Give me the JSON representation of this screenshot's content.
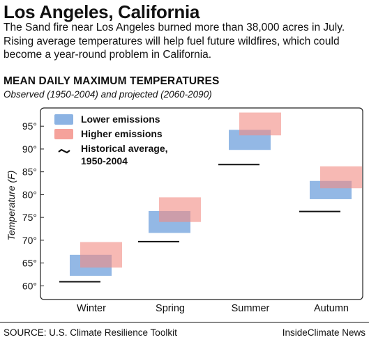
{
  "headline": "Los Angeles, California",
  "dek": "The Sand fire near Los Angeles burned more than 38,000 acres in July. Rising average temperatures will help fuel future wildfires, which could become a year-round problem in California.",
  "source": "SOURCE: U.S. Climate Resilience Toolkit",
  "credit": "InsideClimate News",
  "colors": {
    "lower": "#6fa0dc",
    "higher": "#f28b82",
    "historical": "#111111"
  },
  "chart_data": {
    "type": "range-bar",
    "title": "MEAN DAILY MAXIMUM TEMPERATURES",
    "subtitle": "Observed (1950-2004) and projected (2060-2090)",
    "ylabel": "Temperature (F)",
    "ylim": [
      57,
      99
    ],
    "yticks": [
      60,
      65,
      70,
      75,
      80,
      85,
      90,
      95
    ],
    "ytick_labels": [
      "60°",
      "65°",
      "70°",
      "75°",
      "80°",
      "85°",
      "90°",
      "95°"
    ],
    "categories": [
      "Winter",
      "Spring",
      "Summer",
      "Autumn"
    ],
    "legend": {
      "lower": "Lower emissions",
      "higher": "Higher emissions",
      "historical_line1": "Historical average,",
      "historical_line2": "1950-2004"
    },
    "series": [
      {
        "name": "Lower emissions",
        "ranges": [
          [
            62.2,
            66.8
          ],
          [
            71.6,
            76.4
          ],
          [
            89.8,
            94.2
          ],
          [
            79.0,
            83.0
          ]
        ]
      },
      {
        "name": "Higher emissions",
        "ranges": [
          [
            64.0,
            69.6
          ],
          [
            74.0,
            79.4
          ],
          [
            93.0,
            98.0
          ],
          [
            81.4,
            86.2
          ]
        ]
      },
      {
        "name": "Historical average, 1950-2004",
        "values": [
          60.9,
          69.7,
          86.6,
          76.3
        ]
      }
    ]
  }
}
